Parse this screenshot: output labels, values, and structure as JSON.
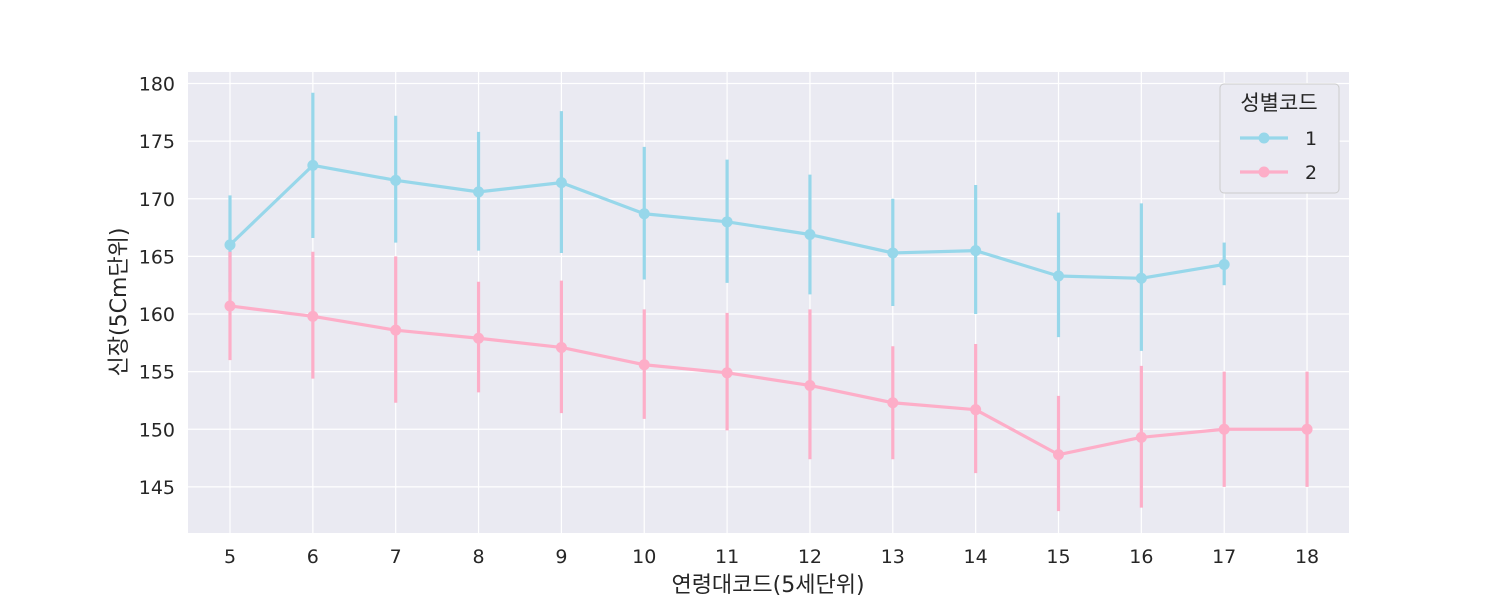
{
  "chart_data": {
    "type": "line",
    "xlabel": "연령대코드(5세단위)",
    "ylabel": "신장(5Cm단위)",
    "categories": [
      "5",
      "6",
      "7",
      "8",
      "9",
      "10",
      "11",
      "12",
      "13",
      "14",
      "15",
      "16",
      "17",
      "18"
    ],
    "yticks": [
      145,
      150,
      155,
      160,
      165,
      170,
      175,
      180
    ],
    "ylim": [
      141,
      181
    ],
    "grid": true,
    "legend": {
      "title": "성별코드",
      "placement": "top-right"
    },
    "series": [
      {
        "name": "1",
        "color": "#97d7ea",
        "values": [
          166.0,
          172.9,
          171.6,
          170.6,
          171.4,
          168.7,
          168.0,
          166.9,
          165.3,
          165.5,
          163.3,
          163.1,
          164.3,
          null
        ],
        "lower": [
          161.9,
          166.6,
          166.2,
          165.5,
          165.3,
          163.0,
          162.7,
          161.7,
          160.7,
          160.0,
          158.0,
          156.8,
          162.5,
          null
        ],
        "upper": [
          170.3,
          179.2,
          177.2,
          175.8,
          177.6,
          174.5,
          173.4,
          172.1,
          170.0,
          171.2,
          168.8,
          169.6,
          166.2,
          null
        ]
      },
      {
        "name": "2",
        "color": "#fdaec8",
        "values": [
          160.7,
          159.8,
          158.6,
          157.9,
          157.1,
          155.6,
          154.9,
          153.8,
          152.3,
          151.7,
          147.8,
          149.3,
          150.0,
          150.0
        ],
        "lower": [
          156.0,
          154.4,
          152.3,
          153.2,
          151.4,
          150.9,
          149.9,
          147.4,
          147.4,
          146.2,
          142.9,
          143.2,
          145.0,
          145.0
        ],
        "upper": [
          165.4,
          165.4,
          165.0,
          162.8,
          162.9,
          160.4,
          160.1,
          160.4,
          157.2,
          157.4,
          152.9,
          155.5,
          155.0,
          155.0
        ]
      }
    ]
  }
}
